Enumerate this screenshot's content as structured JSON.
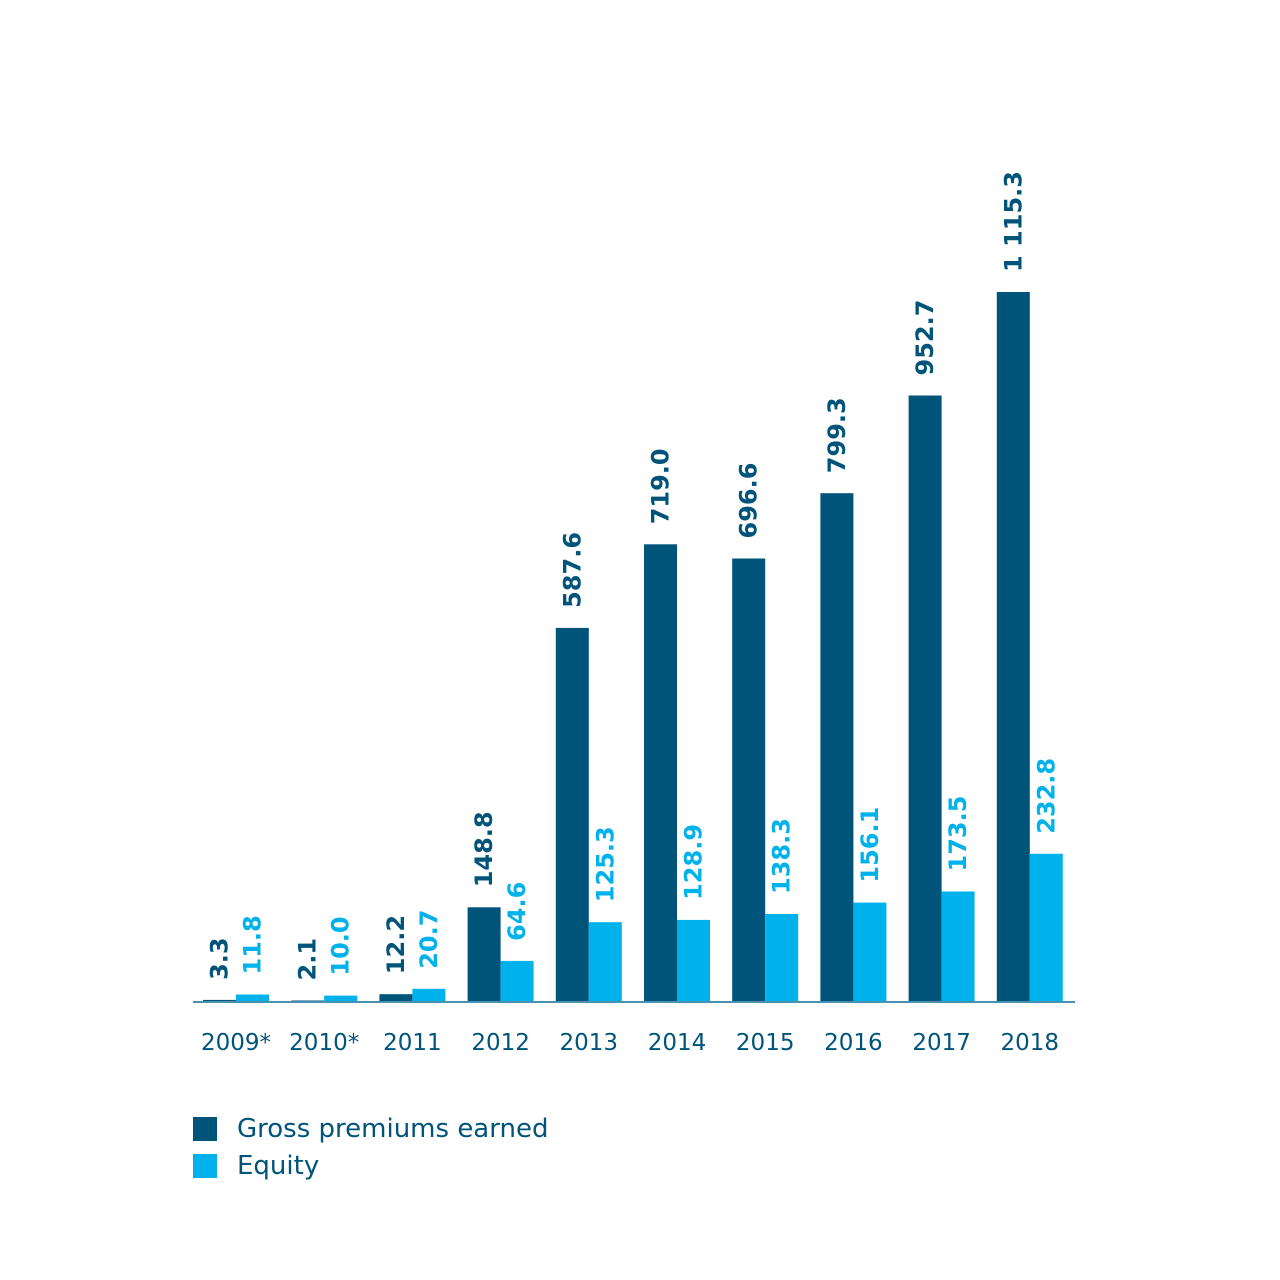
{
  "chart_data": {
    "type": "bar",
    "categories": [
      "2009*",
      "2010*",
      "2011",
      "2012",
      "2013",
      "2014",
      "2015",
      "2016",
      "2017",
      "2018"
    ],
    "series": [
      {
        "name": "Gross premiums earned",
        "color": "#00547a",
        "values": [
          3.3,
          2.1,
          12.2,
          148.8,
          587.6,
          719.0,
          696.6,
          799.3,
          952.7,
          1115.3
        ],
        "labels": [
          "3.3",
          "2.1",
          "12.2",
          "148.8",
          "587.6",
          "719.0",
          "696.6",
          "799.3",
          "952.7",
          "1 115.3"
        ]
      },
      {
        "name": "Equity",
        "color": "#00b2ec",
        "values": [
          11.8,
          10.0,
          20.7,
          64.6,
          125.3,
          128.9,
          138.3,
          156.1,
          173.5,
          232.8
        ],
        "labels": [
          "11.8",
          "10.0",
          "20.7",
          "64.6",
          "125.3",
          "128.9",
          "138.3",
          "156.1",
          "173.5",
          "232.8"
        ]
      }
    ],
    "ylim": [
      0,
      1115.3
    ],
    "grid": false,
    "legend_position": "bottom-left"
  },
  "colors": {
    "axis": "#4a90b0",
    "tick_text": "#00547a"
  }
}
